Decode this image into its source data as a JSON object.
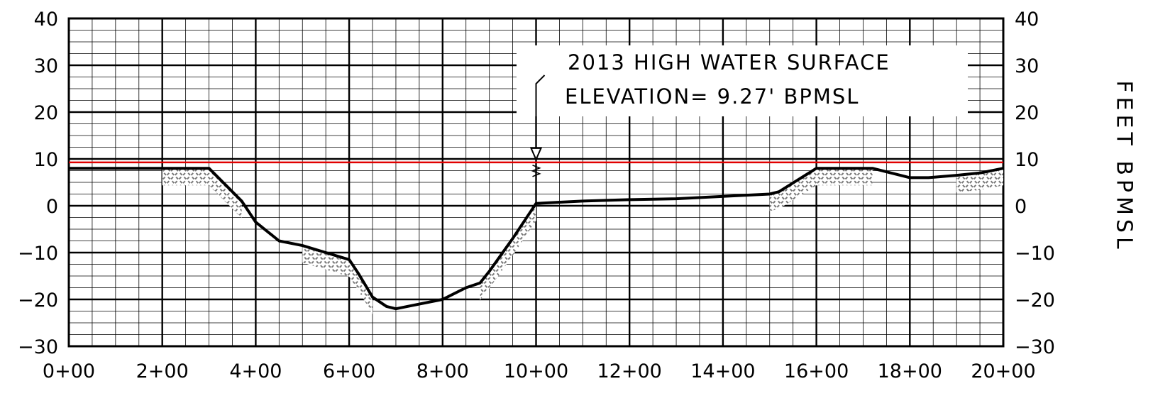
{
  "chart_data": {
    "type": "line",
    "title": "",
    "xlabel": "",
    "ylabel": "FEET BPMSL",
    "x_tick_labels": [
      "0+00",
      "2+00",
      "4+00",
      "6+00",
      "8+00",
      "10+00",
      "12+00",
      "14+00",
      "16+00",
      "18+00",
      "20+00"
    ],
    "y_tick_labels": [
      "40",
      "30",
      "20",
      "10",
      "0",
      "−10",
      "−20",
      "−30"
    ],
    "xlim": [
      0,
      2000
    ],
    "ylim": [
      -30,
      40
    ],
    "grid": true,
    "colors": {
      "water_line": "#e00000",
      "ground": "#000000",
      "grid": "#000000"
    },
    "water_surface": {
      "elevation": 9.27,
      "label_line1": "2013 HIGH WATER SURFACE",
      "label_line2": "ELEVATION= 9.27' BPMSL",
      "marker_station": 1000
    },
    "series": [
      {
        "x": [
          0,
          200,
          300,
          340,
          370,
          400,
          450,
          500,
          550,
          600,
          620,
          650,
          680,
          700,
          750,
          800,
          850,
          880,
          900,
          950,
          1000,
          1100,
          1200,
          1300,
          1400,
          1500,
          1520,
          1560,
          1600,
          1650,
          1700,
          1720,
          1760,
          1800,
          1840,
          1900,
          1950,
          2000
        ],
        "y": [
          8,
          8,
          8,
          4,
          1,
          -3.5,
          -7.5,
          -8.5,
          -10,
          -11.5,
          -14.5,
          -19.5,
          -21.5,
          -22,
          -21,
          -20,
          -17.5,
          -16.5,
          -14,
          -7,
          0.5,
          1,
          1.3,
          1.5,
          2,
          2.5,
          3,
          5.5,
          8,
          8,
          8,
          8,
          7,
          6,
          6,
          6.5,
          7,
          8
        ]
      }
    ]
  }
}
